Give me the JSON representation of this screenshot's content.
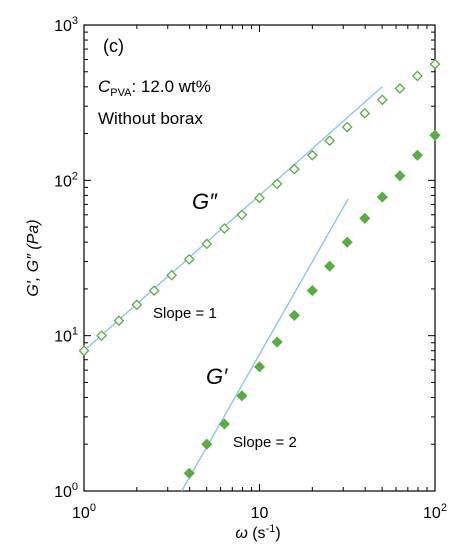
{
  "chart_data": {
    "type": "scatter",
    "panel_label": "(c)",
    "xscale": "log",
    "yscale": "log",
    "xlim": [
      1,
      100
    ],
    "ylim": [
      1,
      1000
    ],
    "grid": false,
    "xlabel": {
      "symbol": "ω",
      "unit_base": " (s",
      "unit_sup": "-1",
      "unit_close": ")"
    },
    "ylabel": "G′, G″ (Pa)",
    "x_ticks": [
      {
        "base": "10",
        "exp": "0",
        "value": 1
      },
      {
        "base": "10",
        "exp": "",
        "value": 10
      },
      {
        "base": "10",
        "exp": "2",
        "value": 100
      }
    ],
    "y_ticks": [
      {
        "base": "10",
        "exp": "0",
        "value": 1
      },
      {
        "base": "10",
        "exp": "1",
        "value": 10
      },
      {
        "base": "10",
        "exp": "2",
        "value": 100
      },
      {
        "base": "10",
        "exp": "3",
        "value": 1000
      }
    ],
    "annotations": {
      "cpva_symbol": "C",
      "cpva_subscript": "PVA",
      "cpva_value": ": 12.0 wt%",
      "condition": "Without borax",
      "g2_label": "G″",
      "g1_label": "G′",
      "slope1": "Slope = 1",
      "slope2": "Slope = 2"
    },
    "series": [
      {
        "name": "G″",
        "marker": "open-diamond",
        "color": "#5aac44",
        "x": [
          1.0,
          1.26,
          1.58,
          2.0,
          2.51,
          3.16,
          3.98,
          5.01,
          6.31,
          7.94,
          10.0,
          12.6,
          15.8,
          20.0,
          25.1,
          31.6,
          39.8,
          50.1,
          63.1,
          79.4,
          100.0
        ],
        "y": [
          8.0,
          10.0,
          12.5,
          15.8,
          19.5,
          24.5,
          31.0,
          39.0,
          49.0,
          60.0,
          77.0,
          95.0,
          118.0,
          145.0,
          180.0,
          220.0,
          270.0,
          330.0,
          390.0,
          470.0,
          560.0
        ]
      },
      {
        "name": "G′",
        "marker": "filled-diamond",
        "color": "#5aac44",
        "x": [
          3.98,
          5.01,
          6.31,
          7.94,
          10.0,
          12.6,
          15.8,
          20.0,
          25.1,
          31.6,
          39.8,
          50.1,
          63.1,
          79.4,
          100.0
        ],
        "y": [
          1.3,
          2.0,
          2.7,
          4.1,
          6.3,
          9.1,
          13.5,
          19.5,
          28.0,
          40.0,
          57.0,
          78.0,
          107.0,
          145.0,
          195.0
        ]
      }
    ],
    "reference_lines": [
      {
        "label": "Slope = 1",
        "color": "#8ec6ea",
        "x": [
          1.0,
          50.0
        ],
        "y": [
          8.0,
          400.0
        ]
      },
      {
        "label": "Slope = 2",
        "color": "#8ec6ea",
        "x": [
          3.6,
          32.0
        ],
        "y": [
          1.0,
          76.0
        ]
      }
    ]
  }
}
